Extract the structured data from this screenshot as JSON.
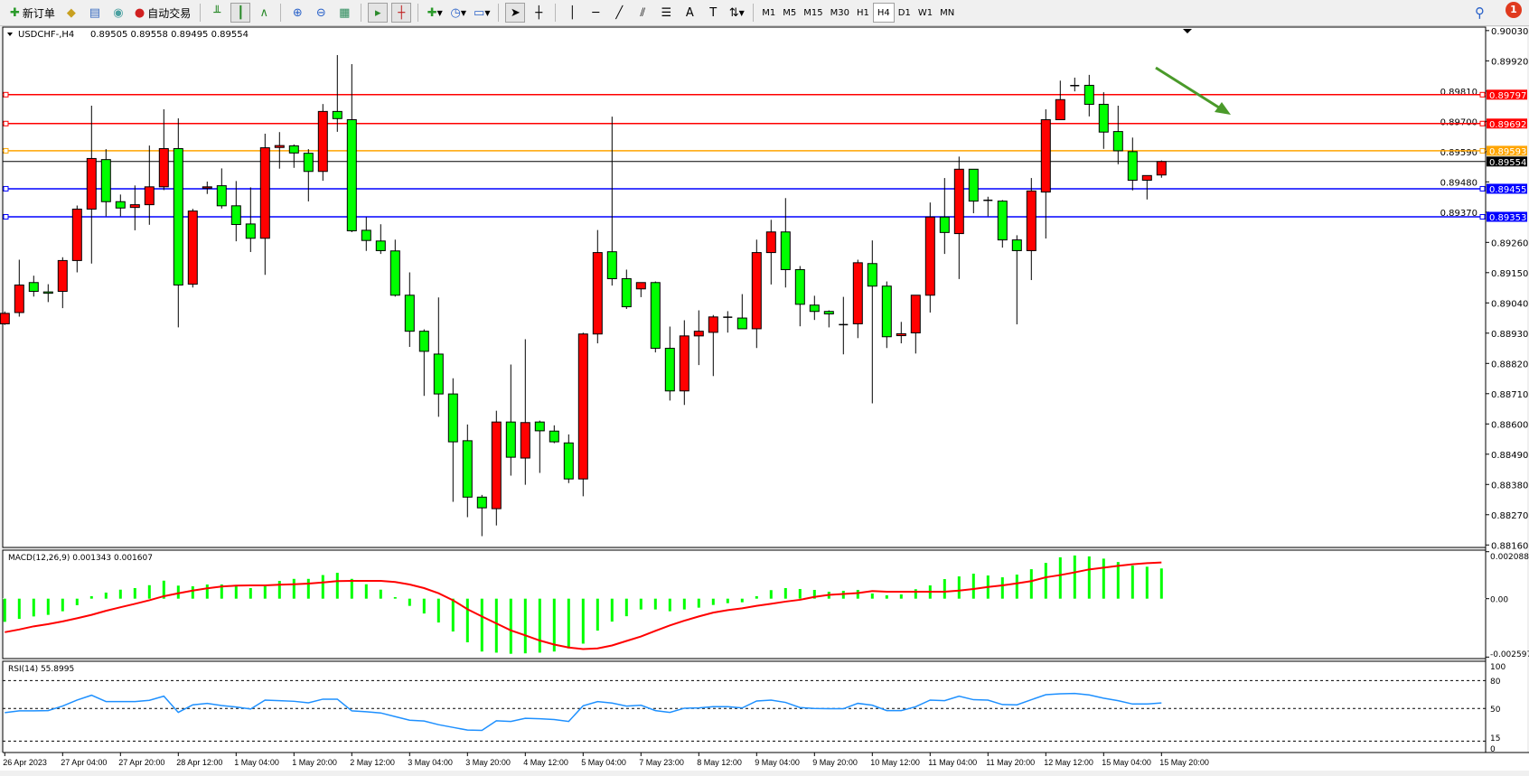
{
  "toolbar": {
    "new_order_label": "新订单",
    "auto_trade_label": "自动交易",
    "timeframes": [
      "M1",
      "M5",
      "M15",
      "M30",
      "H1",
      "H4",
      "D1",
      "W1",
      "MN"
    ],
    "active_timeframe": "H4",
    "notification_count": "1"
  },
  "chart": {
    "symbol_header": "USDCHF-,H4",
    "ohlc_header": "0.89505 0.89558 0.89495 0.89554",
    "macd_header": "MACD(12,26,9) 0.001343 0.001607",
    "rsi_header": "RSI(14) 55.8995"
  },
  "chart_data": [
    {
      "type": "candlestick",
      "symbol": "USDCHF-",
      "timeframe": "H4",
      "bull_color": "#ff0000",
      "bear_color": "#00ff00",
      "ylim": [
        0.8816,
        0.9003
      ],
      "price_ticks": [
        "0.90030",
        "0.89920",
        "0.89810",
        "0.89700",
        "0.89590",
        "0.89480",
        "0.89370",
        "0.89260",
        "0.89150",
        "0.89040",
        "0.88930",
        "0.88820",
        "0.88710",
        "0.88600",
        "0.88490",
        "0.88380",
        "0.88270",
        "0.88160"
      ],
      "time_labels": [
        "26 Apr 2023",
        "27 Apr 04:00",
        "27 Apr 20:00",
        "28 Apr 12:00",
        "1 May 04:00",
        "1 May 20:00",
        "2 May 12:00",
        "3 May 04:00",
        "3 May 20:00",
        "4 May 12:00",
        "5 May 04:00",
        "7 May 23:00",
        "8 May 12:00",
        "9 May 04:00",
        "9 May 20:00",
        "10 May 12:00",
        "11 May 04:00",
        "11 May 20:00",
        "12 May 12:00",
        "15 May 04:00",
        "15 May 20:00"
      ],
      "ohlc": [
        [
          0.88964,
          0.89009,
          0.8896,
          0.89002
        ],
        [
          0.89005,
          0.89197,
          0.8899,
          0.89105
        ],
        [
          0.89114,
          0.89139,
          0.89063,
          0.89082
        ],
        [
          0.8908,
          0.89108,
          0.89043,
          0.89079
        ],
        [
          0.89082,
          0.89206,
          0.89021,
          0.89194
        ],
        [
          0.89194,
          0.89394,
          0.89151,
          0.89381
        ],
        [
          0.89381,
          0.89757,
          0.89183,
          0.89565
        ],
        [
          0.89561,
          0.89599,
          0.89355,
          0.89408
        ],
        [
          0.89408,
          0.89434,
          0.89355,
          0.89385
        ],
        [
          0.89387,
          0.89467,
          0.89304,
          0.89397
        ],
        [
          0.89397,
          0.89612,
          0.89324,
          0.89462
        ],
        [
          0.89462,
          0.89744,
          0.8945,
          0.89601
        ],
        [
          0.89601,
          0.89711,
          0.88951,
          0.89105
        ],
        [
          0.89108,
          0.89382,
          0.89096,
          0.89374
        ],
        [
          0.89458,
          0.89481,
          0.89436,
          0.89462
        ],
        [
          0.89466,
          0.89529,
          0.89383,
          0.89393
        ],
        [
          0.89393,
          0.89483,
          0.89264,
          0.89325
        ],
        [
          0.89327,
          0.8946,
          0.89225,
          0.89275
        ],
        [
          0.89275,
          0.89655,
          0.89142,
          0.89604
        ],
        [
          0.89605,
          0.89661,
          0.89528,
          0.89612
        ],
        [
          0.89611,
          0.89616,
          0.89531,
          0.89585
        ],
        [
          0.89584,
          0.89599,
          0.89409,
          0.89518
        ],
        [
          0.89518,
          0.89763,
          0.89484,
          0.89736
        ],
        [
          0.89736,
          0.89941,
          0.89662,
          0.8971
        ],
        [
          0.89706,
          0.89908,
          0.89297,
          0.89302
        ],
        [
          0.89304,
          0.89352,
          0.89229,
          0.89267
        ],
        [
          0.89265,
          0.89326,
          0.89218,
          0.8923
        ],
        [
          0.89229,
          0.8927,
          0.89063,
          0.89068
        ],
        [
          0.89068,
          0.89151,
          0.8888,
          0.88937
        ],
        [
          0.88937,
          0.88944,
          0.88702,
          0.88864
        ],
        [
          0.88854,
          0.8906,
          0.88626,
          0.88709
        ],
        [
          0.88709,
          0.88766,
          0.88317,
          0.88535
        ],
        [
          0.88539,
          0.88598,
          0.88261,
          0.88334
        ],
        [
          0.88334,
          0.88342,
          0.88192,
          0.88295
        ],
        [
          0.88292,
          0.88648,
          0.88231,
          0.88607
        ],
        [
          0.88607,
          0.88816,
          0.88412,
          0.88479
        ],
        [
          0.88476,
          0.88908,
          0.88379,
          0.88605
        ],
        [
          0.88607,
          0.88612,
          0.88422,
          0.88575
        ],
        [
          0.88574,
          0.88595,
          0.8853,
          0.88535
        ],
        [
          0.88531,
          0.88562,
          0.88385,
          0.884
        ],
        [
          0.884,
          0.88932,
          0.88337,
          0.88927
        ],
        [
          0.88927,
          0.89305,
          0.88893,
          0.89223
        ],
        [
          0.89226,
          0.89717,
          0.89103,
          0.89128
        ],
        [
          0.89128,
          0.89161,
          0.89018,
          0.89026
        ],
        [
          0.89091,
          0.89114,
          0.89061,
          0.89114
        ],
        [
          0.89114,
          0.89118,
          0.8886,
          0.88875
        ],
        [
          0.88875,
          0.88954,
          0.88685,
          0.8872
        ],
        [
          0.8872,
          0.88977,
          0.88669,
          0.8892
        ],
        [
          0.8892,
          0.89013,
          0.88814,
          0.88937
        ],
        [
          0.88933,
          0.88996,
          0.88774,
          0.88989
        ],
        [
          0.88988,
          0.8901,
          0.88932,
          0.88988
        ],
        [
          0.88985,
          0.89072,
          0.88946,
          0.88946
        ],
        [
          0.88946,
          0.8927,
          0.88876,
          0.89223
        ],
        [
          0.89223,
          0.89342,
          0.89107,
          0.89298
        ],
        [
          0.89298,
          0.89421,
          0.89096,
          0.89161
        ],
        [
          0.89161,
          0.89174,
          0.88955,
          0.89035
        ],
        [
          0.89032,
          0.89066,
          0.88978,
          0.89009
        ],
        [
          0.89009,
          0.89013,
          0.88951,
          0.89
        ],
        [
          0.88961,
          0.89062,
          0.88853,
          0.88961
        ],
        [
          0.88964,
          0.89197,
          0.88912,
          0.89186
        ],
        [
          0.89183,
          0.89267,
          0.88675,
          0.89101
        ],
        [
          0.89101,
          0.89118,
          0.88876,
          0.88917
        ],
        [
          0.88921,
          0.88971,
          0.88893,
          0.88928
        ],
        [
          0.88931,
          0.89068,
          0.88856,
          0.89068
        ],
        [
          0.89068,
          0.89405,
          0.89005,
          0.89352
        ],
        [
          0.89352,
          0.89494,
          0.89218,
          0.89296
        ],
        [
          0.89292,
          0.89572,
          0.89127,
          0.89526
        ],
        [
          0.89526,
          0.89526,
          0.89366,
          0.8941
        ],
        [
          0.89413,
          0.89426,
          0.89355,
          0.89413
        ],
        [
          0.8941,
          0.89414,
          0.89241,
          0.89269
        ],
        [
          0.89269,
          0.89286,
          0.88962,
          0.8923
        ],
        [
          0.8923,
          0.89494,
          0.89123,
          0.89447
        ],
        [
          0.89443,
          0.89744,
          0.89274,
          0.89706
        ],
        [
          0.89706,
          0.89848,
          0.89706,
          0.89779
        ],
        [
          0.8983,
          0.89859,
          0.89809,
          0.8983
        ],
        [
          0.89831,
          0.89869,
          0.89718,
          0.89762
        ],
        [
          0.89762,
          0.89806,
          0.896,
          0.89661
        ],
        [
          0.89663,
          0.89757,
          0.89544,
          0.89593
        ],
        [
          0.8959,
          0.89641,
          0.89449,
          0.89486
        ],
        [
          0.89486,
          0.89503,
          0.89416,
          0.89503
        ],
        [
          0.89505,
          0.89558,
          0.89495,
          0.89554
        ]
      ],
      "levels": [
        {
          "price": "0.89797",
          "color": "#ff0000"
        },
        {
          "price": "0.89692",
          "color": "#ff0000"
        },
        {
          "price": "0.89593",
          "color": "#ffa500"
        },
        {
          "price": "0.89455",
          "color": "#0000ff"
        },
        {
          "price": "0.89353",
          "color": "#0000ff"
        }
      ],
      "current_price": {
        "price": "0.89554",
        "color": "#000000"
      },
      "annotation_arrow": {
        "color": "#4a9a2a",
        "direction": "down-right"
      }
    },
    {
      "type": "bar",
      "indicator": "MACD(12,26,9)",
      "axis_labels": [
        "0.002088",
        "0.00",
        "-0.002597"
      ],
      "ylim": [
        -0.002597,
        0.002088
      ],
      "histogram_color": "#00ff00",
      "signal_color": "#ff0000",
      "histogram": [
        -0.00103,
        -0.0009,
        -0.00079,
        -0.00072,
        -0.00056,
        -0.00029,
        0.00011,
        0.00027,
        0.0004,
        0.00047,
        0.0006,
        0.0008,
        0.00058,
        0.00055,
        0.00063,
        0.00063,
        0.00058,
        0.00047,
        0.00058,
        0.00079,
        0.00088,
        0.00088,
        0.00105,
        0.00115,
        0.00088,
        0.00064,
        0.0004,
        7e-05,
        -0.00032,
        -0.00066,
        -0.00106,
        -0.00146,
        -0.00194,
        -0.00235,
        -0.0024,
        -0.00245,
        -0.00243,
        -0.0024,
        -0.00235,
        -0.00221,
        -0.002,
        -0.00142,
        -0.00102,
        -0.00078,
        -0.00048,
        -0.00048,
        -0.00056,
        -0.00048,
        -0.0004,
        -0.00028,
        -0.0002,
        -0.00016,
        0.00011,
        0.00038,
        0.00047,
        0.00043,
        0.00039,
        0.00031,
        0.00035,
        0.00039,
        0.00023,
        0.00015,
        0.00019,
        0.00042,
        0.00059,
        0.00087,
        0.00099,
        0.00111,
        0.00103,
        0.00095,
        0.00107,
        0.00131,
        0.00159,
        0.00184,
        0.00192,
        0.00188,
        0.00178,
        0.00163,
        0.00147,
        0.00142,
        0.001343
      ],
      "signal": [
        -0.00149,
        -0.00137,
        -0.00123,
        -0.00113,
        -0.00101,
        -0.00087,
        -0.00072,
        -0.00054,
        -0.00038,
        -0.00023,
        -7e-05,
        0.00011,
        0.00024,
        0.00036,
        0.00046,
        0.00054,
        0.00058,
        0.00059,
        0.00059,
        0.00062,
        0.00064,
        0.00067,
        0.00072,
        0.00078,
        0.00079,
        0.00079,
        0.00079,
        0.00074,
        0.00063,
        0.00047,
        0.00024,
        -7e-05,
        -0.00047,
        -0.00079,
        -0.0011,
        -0.00141,
        -0.00163,
        -0.00186,
        -0.00204,
        -0.00217,
        -0.00224,
        -0.00221,
        -0.00208,
        -0.00188,
        -0.00168,
        -0.00143,
        -0.00119,
        -0.00098,
        -0.00079,
        -0.00062,
        -0.00051,
        -0.00043,
        -0.00032,
        -0.00023,
        -0.00013,
        -5e-05,
        8e-05,
        0.00017,
        0.00021,
        0.00025,
        0.00034,
        0.00031,
        0.00031,
        0.00031,
        0.00031,
        0.00031,
        0.00036,
        0.00043,
        0.00052,
        0.00059,
        0.00068,
        0.00078,
        0.00095,
        0.00105,
        0.00117,
        0.0013,
        0.00138,
        0.00146,
        0.00153,
        0.00158,
        0.001607
      ]
    },
    {
      "type": "line",
      "indicator": "RSI(14)",
      "axis_labels": [
        "100",
        "80",
        "50",
        "15",
        "0"
      ],
      "levels": [
        80,
        50,
        15
      ],
      "ylim": [
        0,
        100
      ],
      "color": "#1e90ff",
      "values": [
        45.5,
        47.4,
        47.4,
        47.7,
        52.6,
        59.0,
        64.2,
        57.4,
        57.4,
        57.4,
        58.7,
        63.2,
        45.8,
        53.9,
        55.5,
        53.2,
        51.6,
        49.4,
        59.0,
        58.4,
        57.7,
        56.1,
        60.0,
        60.0,
        47.4,
        46.5,
        45.2,
        41.3,
        37.4,
        36.5,
        32.6,
        29.7,
        26.8,
        26.5,
        36.8,
        36.1,
        39.4,
        39.0,
        38.1,
        36.1,
        52.9,
        57.4,
        55.8,
        52.6,
        53.5,
        47.7,
        45.8,
        50.3,
        50.6,
        51.9,
        51.9,
        50.6,
        58.0,
        59.0,
        56.5,
        51.0,
        50.0,
        49.7,
        49.7,
        55.5,
        53.5,
        47.7,
        47.7,
        51.9,
        59.0,
        58.4,
        63.2,
        59.4,
        59.0,
        54.2,
        53.9,
        59.4,
        64.8,
        65.8,
        66.1,
        64.5,
        61.0,
        58.4,
        54.8,
        54.8,
        55.9
      ]
    }
  ]
}
